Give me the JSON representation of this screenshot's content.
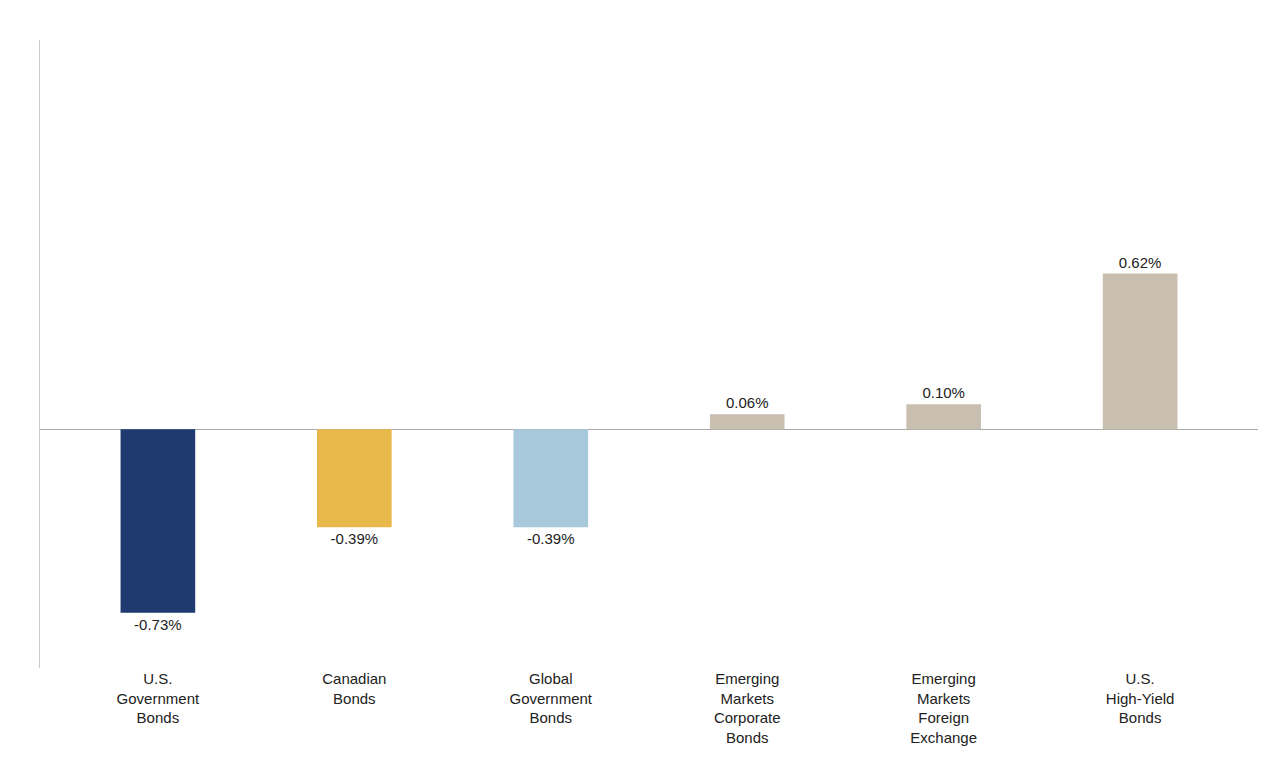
{
  "chart_data": {
    "type": "bar",
    "categories": [
      "U.S.\nGovernment\nBonds",
      "Canadian\nBonds",
      "Global\nGovernment\nBonds",
      "Emerging\nMarkets\nCorporate\nBonds",
      "Emerging\nMarkets\nForeign\nExchange",
      "U.S.\nHigh-Yield\nBonds"
    ],
    "values": [
      -0.73,
      -0.39,
      -0.39,
      0.06,
      0.1,
      0.62
    ],
    "value_labels": [
      "-0.73%",
      "-0.39%",
      "-0.39%",
      "0.06%",
      "0.10%",
      "0.62%"
    ],
    "colors": [
      "#1e3a6e",
      "#e8b84b",
      "#a8c8dc",
      "#c8bfb0",
      "#c8bfb0",
      "#c8bfb0"
    ],
    "ylim": [
      -0.95,
      1.55
    ],
    "data_labels": true,
    "tick_labels": "x",
    "grid": false
  }
}
